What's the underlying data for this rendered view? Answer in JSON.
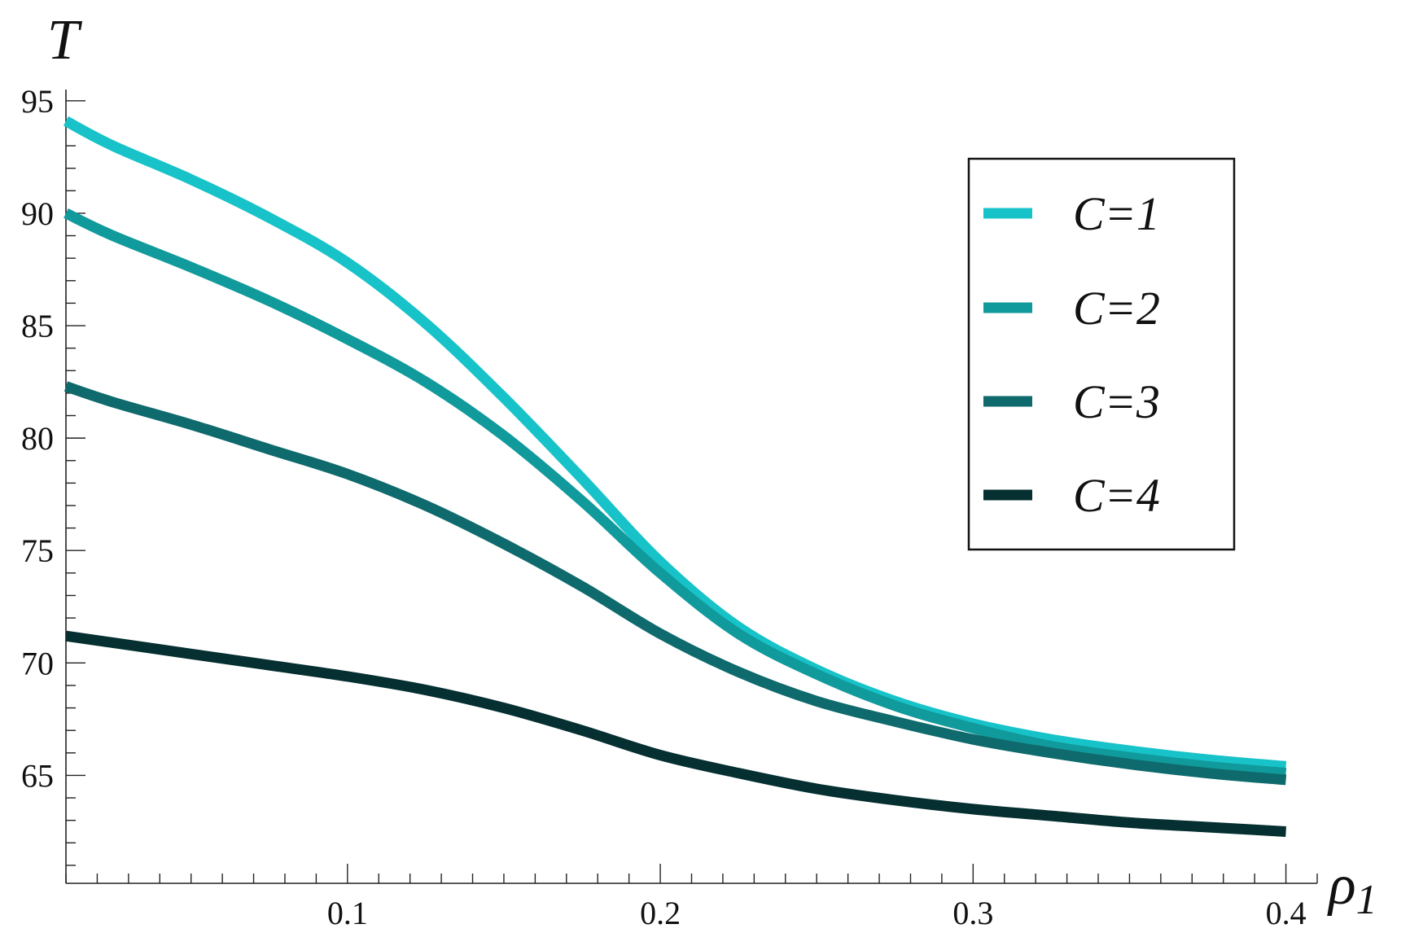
{
  "chart_data": {
    "type": "line",
    "title": "",
    "xlabel": "ρ1",
    "ylabel": "T",
    "xlim": [
      0.01,
      0.41
    ],
    "ylim": [
      60.2,
      95.5
    ],
    "x_ticks": [
      0.1,
      0.2,
      0.3,
      0.4
    ],
    "x_tick_labels": [
      "0.1",
      "0.2",
      "0.3",
      "0.4"
    ],
    "y_ticks": [
      65,
      70,
      75,
      80,
      85,
      90,
      95
    ],
    "y_tick_labels": [
      "65",
      "70",
      "75",
      "80",
      "85",
      "90",
      "95"
    ],
    "grid": false,
    "legend_position": "top-right",
    "x": [
      0.01,
      0.025,
      0.05,
      0.075,
      0.1,
      0.125,
      0.15,
      0.175,
      0.2,
      0.225,
      0.25,
      0.275,
      0.3,
      0.325,
      0.35,
      0.375,
      0.4
    ],
    "series": [
      {
        "name": "C=1",
        "color": "#17C3C8",
        "values": [
          94.1,
          93.0,
          91.5,
          89.8,
          87.8,
          85.1,
          81.8,
          78.2,
          74.5,
          71.6,
          69.7,
          68.3,
          67.3,
          66.6,
          66.1,
          65.7,
          65.4
        ]
      },
      {
        "name": "C=2",
        "color": "#119A9C",
        "values": [
          90.0,
          89.0,
          87.6,
          86.1,
          84.4,
          82.5,
          80.1,
          77.2,
          74.0,
          71.3,
          69.5,
          68.1,
          67.1,
          66.3,
          65.8,
          65.4,
          65.1
        ]
      },
      {
        "name": "C=3",
        "color": "#0E6A6C",
        "values": [
          82.3,
          81.6,
          80.6,
          79.5,
          78.4,
          77.0,
          75.3,
          73.4,
          71.3,
          69.6,
          68.3,
          67.4,
          66.6,
          66.0,
          65.5,
          65.1,
          64.8
        ]
      },
      {
        "name": "C=4",
        "color": "#052F30",
        "values": [
          71.2,
          70.9,
          70.4,
          69.9,
          69.4,
          68.8,
          68.0,
          67.0,
          65.9,
          65.1,
          64.4,
          63.9,
          63.5,
          63.2,
          62.9,
          62.7,
          62.5
        ]
      }
    ]
  }
}
